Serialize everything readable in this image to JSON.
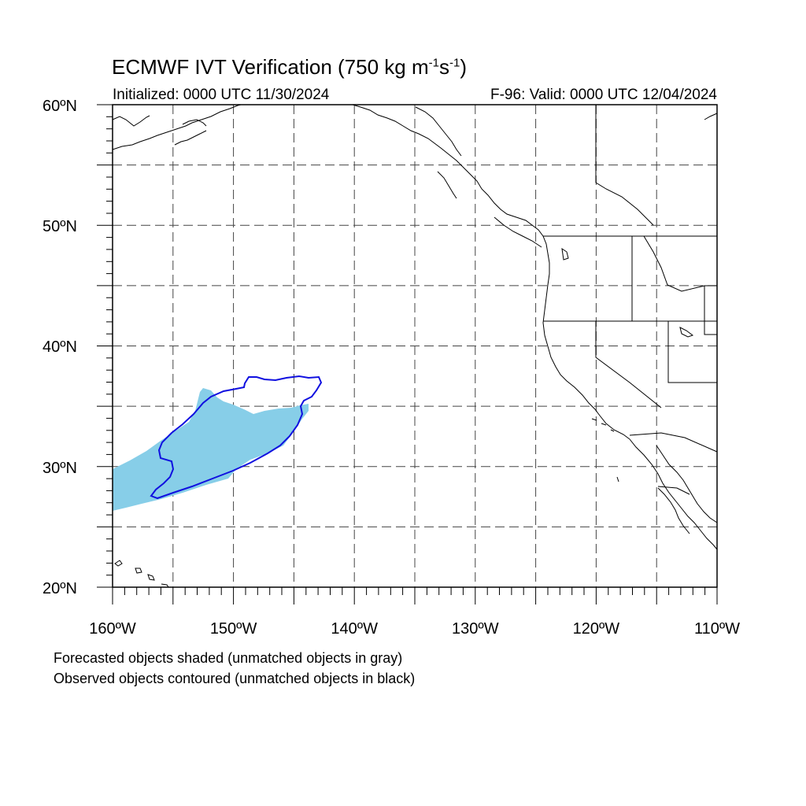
{
  "title": {
    "text": "ECMWF IVT Verification (750 kg m",
    "sup1": "-1",
    "mid": "s",
    "sup2": "-1",
    "close": ")"
  },
  "initialized_label": "Initialized: 0000 UTC 11/30/2024",
  "valid_label": "F-96: Valid: 0000 UTC 12/04/2024",
  "map": {
    "lon_range": [
      -160,
      -110
    ],
    "lat_range": [
      20,
      60
    ],
    "lat_labels": [
      "20ºN",
      "30ºN",
      "40ºN",
      "50ºN",
      "60ºN"
    ],
    "lon_labels": [
      "160ºW",
      "150ºW",
      "140ºW",
      "130ºW",
      "120ºW",
      "110ºW"
    ],
    "grid_spacing_deg": 5,
    "grid_style": "dashed",
    "forecast_fill_color": "#87CEE8",
    "observed_contour_color": "#1010E0",
    "coastline_color": "#000000"
  },
  "legend_notes": [
    "Forecasted objects shaded (unmatched objects in gray)",
    "Observed objects contoured (unmatched objects in black)"
  ]
}
